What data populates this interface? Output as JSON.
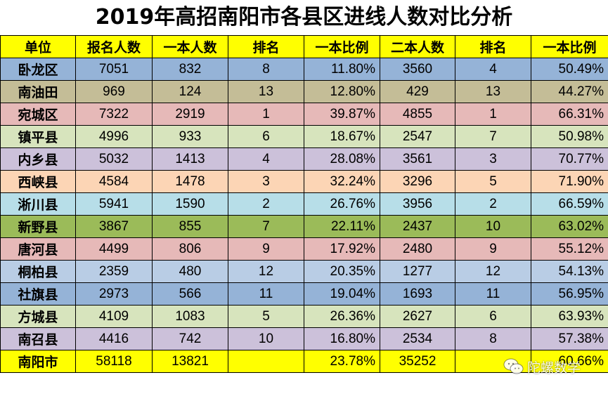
{
  "title": "2019年高招南阳市各县区进线人数对比分析",
  "headers": [
    "单位",
    "报名人数",
    "一本人数",
    "排名",
    "一本比例",
    "二本人数",
    "排名",
    "一本比例"
  ],
  "rows": [
    {
      "name": "卧龙区",
      "reg": "7051",
      "t1": "832",
      "r1": "8",
      "p1": "11.80%",
      "t2": "3560",
      "r2": "4",
      "p2": "50.49%",
      "color": "#95b3d7"
    },
    {
      "name": "南油田",
      "reg": "969",
      "t1": "124",
      "r1": "13",
      "p1": "12.80%",
      "t2": "429",
      "r2": "13",
      "p2": "44.27%",
      "color": "#c4bd97"
    },
    {
      "name": "宛城区",
      "reg": "7322",
      "t1": "2919",
      "r1": "1",
      "p1": "39.87%",
      "t2": "4855",
      "r2": "1",
      "p2": "66.31%",
      "color": "#e6b9b8"
    },
    {
      "name": "镇平县",
      "reg": "4996",
      "t1": "933",
      "r1": "6",
      "p1": "18.67%",
      "t2": "2547",
      "r2": "7",
      "p2": "50.98%",
      "color": "#d7e4bd"
    },
    {
      "name": "内乡县",
      "reg": "5032",
      "t1": "1413",
      "r1": "4",
      "p1": "28.08%",
      "t2": "3561",
      "r2": "3",
      "p2": "70.77%",
      "color": "#ccc1da"
    },
    {
      "name": "西峡县",
      "reg": "4584",
      "t1": "1478",
      "r1": "3",
      "p1": "32.24%",
      "t2": "3296",
      "r2": "5",
      "p2": "71.90%",
      "color": "#fcd5b5"
    },
    {
      "name": "淅川县",
      "reg": "5941",
      "t1": "1590",
      "r1": "2",
      "p1": "26.76%",
      "t2": "3956",
      "r2": "2",
      "p2": "66.59%",
      "color": "#b7dee8"
    },
    {
      "name": "新野县",
      "reg": "3867",
      "t1": "855",
      "r1": "7",
      "p1": "22.11%",
      "t2": "2437",
      "r2": "10",
      "p2": "63.02%",
      "color": "#9bbb59"
    },
    {
      "name": "唐河县",
      "reg": "4499",
      "t1": "806",
      "r1": "9",
      "p1": "17.92%",
      "t2": "2480",
      "r2": "9",
      "p2": "55.12%",
      "color": "#e6b9b8"
    },
    {
      "name": "桐柏县",
      "reg": "2359",
      "t1": "480",
      "r1": "12",
      "p1": "20.35%",
      "t2": "1277",
      "r2": "12",
      "p2": "54.13%",
      "color": "#b9cde5"
    },
    {
      "name": "社旗县",
      "reg": "2973",
      "t1": "566",
      "r1": "11",
      "p1": "19.04%",
      "t2": "1693",
      "r2": "11",
      "p2": "56.95%",
      "color": "#95b3d7"
    },
    {
      "name": "方城县",
      "reg": "4109",
      "t1": "1083",
      "r1": "5",
      "p1": "26.36%",
      "t2": "2627",
      "r2": "6",
      "p2": "63.93%",
      "color": "#d7e4bd"
    },
    {
      "name": "南召县",
      "reg": "4416",
      "t1": "742",
      "r1": "10",
      "p1": "16.80%",
      "t2": "2534",
      "r2": "8",
      "p2": "57.38%",
      "color": "#ccc1da"
    }
  ],
  "total": {
    "name": "南阳市",
    "reg": "58118",
    "t1": "13821",
    "r1": "",
    "p1": "23.78%",
    "t2": "35252",
    "r2": "",
    "p2": "60.66%",
    "color": "#ffff00"
  },
  "watermark": {
    "text": "陀螺数学",
    "icon": "wechat-icon"
  }
}
